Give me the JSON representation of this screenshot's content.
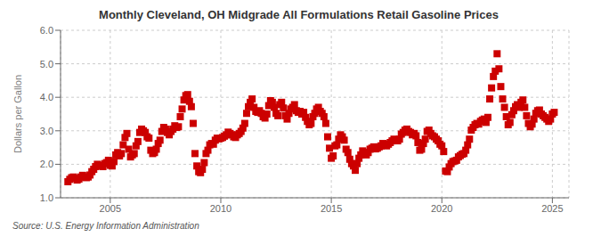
{
  "chart_data": {
    "type": "scatter",
    "title": "Monthly Cleveland, OH Midgrade All Formulations Retail Gasoline Prices",
    "ylabel": "Dollars per Gallon",
    "annotations": [
      "Source: U.S. Energy Information Administration"
    ],
    "color": "#cc0000",
    "marker": "square",
    "grid": true,
    "xlim": [
      2002.75,
      2025.75
    ],
    "xticks": [
      2005,
      2010,
      2015,
      2020,
      2025
    ],
    "ylim": [
      1.0,
      6.0
    ],
    "yticks": [
      {
        "value": 1.0,
        "label": "1.0"
      },
      {
        "value": 2.0,
        "label": "2.0"
      },
      {
        "value": 3.0,
        "label": "3.0"
      },
      {
        "value": 4.0,
        "label": "4.0"
      },
      {
        "value": 5.0,
        "label": "5.0"
      },
      {
        "value": 6.0,
        "label": "6.0"
      }
    ],
    "x": [
      2003.083,
      2003.167,
      2003.25,
      2003.333,
      2003.417,
      2003.5,
      2003.583,
      2003.667,
      2003.75,
      2003.833,
      2003.917,
      2004.0,
      2004.083,
      2004.167,
      2004.25,
      2004.333,
      2004.417,
      2004.5,
      2004.583,
      2004.667,
      2004.75,
      2004.833,
      2004.917,
      2005.0,
      2005.083,
      2005.167,
      2005.25,
      2005.333,
      2005.417,
      2005.5,
      2005.583,
      2005.667,
      2005.75,
      2005.833,
      2005.917,
      2006.0,
      2006.083,
      2006.167,
      2006.25,
      2006.333,
      2006.417,
      2006.5,
      2006.583,
      2006.667,
      2006.75,
      2006.833,
      2006.917,
      2007.0,
      2007.083,
      2007.167,
      2007.25,
      2007.333,
      2007.417,
      2007.5,
      2007.583,
      2007.667,
      2007.75,
      2007.833,
      2007.917,
      2008.0,
      2008.083,
      2008.167,
      2008.25,
      2008.333,
      2008.417,
      2008.5,
      2008.583,
      2008.667,
      2008.75,
      2008.833,
      2008.917,
      2009.0,
      2009.083,
      2009.167,
      2009.25,
      2009.333,
      2009.417,
      2009.5,
      2009.583,
      2009.667,
      2009.75,
      2009.833,
      2009.917,
      2010.0,
      2010.083,
      2010.167,
      2010.25,
      2010.333,
      2010.417,
      2010.5,
      2010.583,
      2010.667,
      2010.75,
      2010.833,
      2010.917,
      2011.0,
      2011.083,
      2011.167,
      2011.25,
      2011.333,
      2011.417,
      2011.5,
      2011.583,
      2011.667,
      2011.75,
      2011.833,
      2011.917,
      2012.0,
      2012.083,
      2012.167,
      2012.25,
      2012.333,
      2012.417,
      2012.5,
      2012.583,
      2012.667,
      2012.75,
      2012.833,
      2012.917,
      2013.0,
      2013.083,
      2013.167,
      2013.25,
      2013.333,
      2013.417,
      2013.5,
      2013.583,
      2013.667,
      2013.75,
      2013.833,
      2013.917,
      2014.0,
      2014.083,
      2014.167,
      2014.25,
      2014.333,
      2014.417,
      2014.5,
      2014.583,
      2014.667,
      2014.75,
      2014.833,
      2014.917,
      2015.0,
      2015.083,
      2015.167,
      2015.25,
      2015.333,
      2015.417,
      2015.5,
      2015.583,
      2015.667,
      2015.75,
      2015.833,
      2015.917,
      2016.0,
      2016.083,
      2016.167,
      2016.25,
      2016.333,
      2016.417,
      2016.5,
      2016.583,
      2016.667,
      2016.75,
      2016.833,
      2016.917,
      2017.0,
      2017.083,
      2017.167,
      2017.25,
      2017.333,
      2017.417,
      2017.5,
      2017.583,
      2017.667,
      2017.75,
      2017.833,
      2017.917,
      2018.0,
      2018.083,
      2018.167,
      2018.25,
      2018.333,
      2018.417,
      2018.5,
      2018.583,
      2018.667,
      2018.75,
      2018.833,
      2018.917,
      2019.0,
      2019.083,
      2019.167,
      2019.25,
      2019.333,
      2019.417,
      2019.5,
      2019.583,
      2019.667,
      2019.75,
      2019.833,
      2019.917,
      2020.0,
      2020.083,
      2020.167,
      2020.25,
      2020.333,
      2020.417,
      2020.5,
      2020.583,
      2020.667,
      2020.75,
      2020.833,
      2020.917,
      2021.0,
      2021.083,
      2021.167,
      2021.25,
      2021.333,
      2021.417,
      2021.5,
      2021.583,
      2021.667,
      2021.75,
      2021.833,
      2021.917,
      2022.0,
      2022.083,
      2022.167,
      2022.25,
      2022.333,
      2022.417,
      2022.5,
      2022.583,
      2022.667,
      2022.75,
      2022.833,
      2022.917,
      2023.0,
      2023.083,
      2023.167,
      2023.25,
      2023.333,
      2023.417,
      2023.5,
      2023.583,
      2023.667,
      2023.75,
      2023.833,
      2023.917,
      2024.0,
      2024.083,
      2024.167,
      2024.25,
      2024.333,
      2024.417,
      2024.5,
      2024.583,
      2024.667,
      2024.75,
      2024.833,
      2024.917,
      2025.0,
      2025.083
    ],
    "values": [
      1.48,
      1.55,
      1.6,
      1.62,
      1.58,
      1.53,
      1.56,
      1.62,
      1.67,
      1.62,
      1.6,
      1.62,
      1.68,
      1.78,
      1.85,
      1.93,
      2.0,
      1.97,
      1.95,
      1.93,
      2.02,
      2.05,
      2.12,
      1.97,
      1.95,
      2.08,
      2.28,
      2.35,
      2.25,
      2.32,
      2.58,
      2.8,
      2.92,
      2.45,
      2.22,
      2.28,
      2.32,
      2.55,
      2.68,
      2.95,
      3.05,
      3.0,
      2.95,
      2.82,
      2.78,
      2.42,
      2.32,
      2.35,
      2.45,
      2.62,
      2.72,
      2.98,
      3.1,
      3.05,
      2.95,
      2.88,
      2.98,
      3.05,
      3.15,
      3.1,
      3.12,
      3.42,
      3.65,
      3.92,
      4.05,
      4.08,
      3.88,
      3.72,
      3.22,
      2.32,
      1.95,
      1.78,
      1.75,
      1.85,
      2.05,
      2.32,
      2.42,
      2.58,
      2.62,
      2.6,
      2.72,
      2.78,
      2.76,
      2.78,
      2.8,
      2.84,
      2.88,
      2.96,
      2.92,
      2.88,
      2.82,
      2.8,
      2.88,
      2.92,
      2.98,
      3.08,
      3.22,
      3.52,
      3.72,
      3.85,
      3.95,
      3.7,
      3.58,
      3.55,
      3.6,
      3.52,
      3.42,
      3.38,
      3.5,
      3.75,
      3.9,
      3.85,
      3.7,
      3.52,
      3.45,
      3.78,
      3.85,
      3.68,
      3.45,
      3.35,
      3.52,
      3.65,
      3.7,
      3.78,
      3.6,
      3.55,
      3.58,
      3.5,
      3.55,
      3.4,
      3.28,
      3.18,
      3.22,
      3.42,
      3.52,
      3.65,
      3.7,
      3.58,
      3.52,
      3.42,
      3.22,
      2.82,
      2.48,
      2.18,
      2.25,
      2.55,
      2.58,
      2.75,
      2.88,
      2.82,
      2.72,
      2.45,
      2.35,
      2.15,
      2.02,
      1.95,
      1.82,
      2.02,
      2.18,
      2.28,
      2.4,
      2.35,
      2.28,
      2.35,
      2.45,
      2.48,
      2.52,
      2.46,
      2.48,
      2.52,
      2.55,
      2.62,
      2.6,
      2.55,
      2.6,
      2.65,
      2.7,
      2.75,
      2.72,
      2.7,
      2.75,
      2.9,
      2.95,
      3.02,
      3.05,
      2.98,
      2.95,
      2.88,
      2.92,
      2.85,
      2.65,
      2.42,
      2.45,
      2.62,
      2.75,
      2.98,
      3.02,
      2.92,
      2.85,
      2.82,
      2.75,
      2.7,
      2.6,
      2.55,
      2.38,
      1.8,
      1.78,
      1.92,
      2.02,
      2.08,
      2.1,
      2.12,
      2.22,
      2.26,
      2.3,
      2.32,
      2.42,
      2.58,
      2.75,
      3.02,
      3.1,
      3.18,
      3.22,
      3.2,
      3.28,
      3.32,
      3.35,
      3.25,
      3.4,
      3.95,
      4.28,
      4.62,
      4.78,
      5.3,
      4.85,
      4.32,
      3.95,
      3.7,
      3.42,
      3.18,
      3.25,
      3.48,
      3.6,
      3.72,
      3.78,
      3.7,
      3.85,
      3.92,
      3.7,
      3.45,
      3.22,
      3.12,
      3.2,
      3.35,
      3.52,
      3.6,
      3.62,
      3.5,
      3.45,
      3.4,
      3.35,
      3.28,
      3.35,
      3.5,
      3.55
    ]
  }
}
